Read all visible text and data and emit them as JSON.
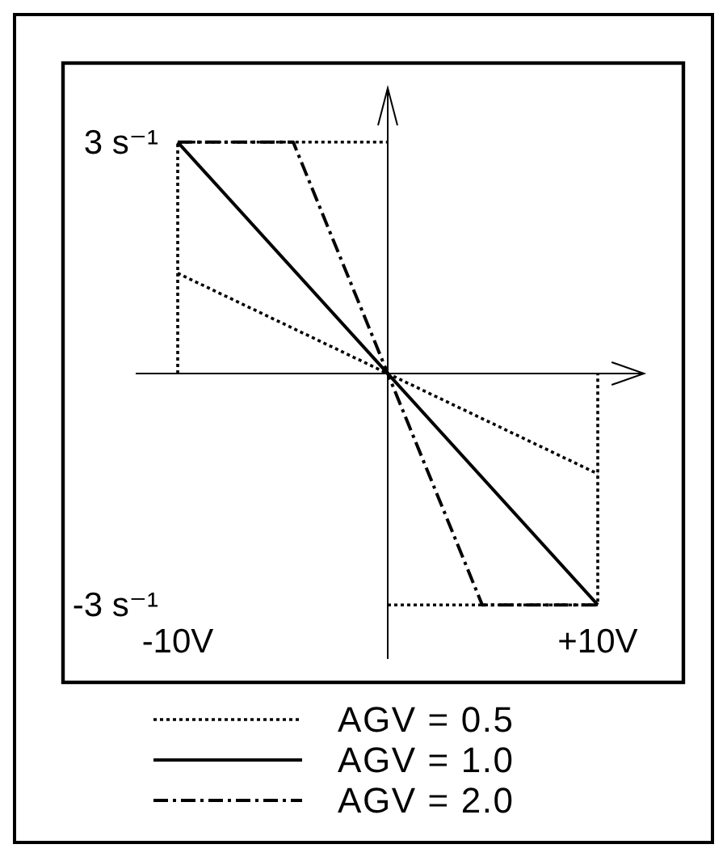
{
  "chart_data": {
    "type": "line",
    "xlim": [
      -12,
      12.2
    ],
    "ylim": [
      -3.7,
      3.7
    ],
    "xticks": [
      {
        "value": -10,
        "label": "-10V"
      },
      {
        "value": 10,
        "label": "+10V"
      }
    ],
    "yticks": [
      {
        "value": 3,
        "label": "3 s⁻¹"
      },
      {
        "value": -3,
        "label": "-3 s⁻¹"
      }
    ],
    "legend": "bottom",
    "series": [
      {
        "name": "AGV = 0.5",
        "color": "#000000",
        "line_style": "dotted",
        "x": [
          -10,
          10
        ],
        "values": [
          1.3,
          -1.3
        ]
      },
      {
        "name": "AGV = 1.0",
        "color": "#000000",
        "line_style": "solid",
        "x": [
          -10,
          10
        ],
        "values": [
          3,
          -3
        ]
      },
      {
        "name": "AGV = 2.0",
        "color": "#000000",
        "line_style": "dashdot",
        "x": [
          -10,
          -4.5,
          4.5,
          10
        ],
        "values": [
          3,
          3,
          -3,
          -3
        ]
      },
      {
        "color": "#000000",
        "line_style": "dotted",
        "x": [
          -10,
          -10,
          0
        ],
        "values": [
          0,
          3,
          3
        ]
      },
      {
        "color": "#000000",
        "line_style": "dotted",
        "x": [
          0,
          10,
          10
        ],
        "values": [
          -3,
          -3,
          0
        ]
      }
    ]
  }
}
